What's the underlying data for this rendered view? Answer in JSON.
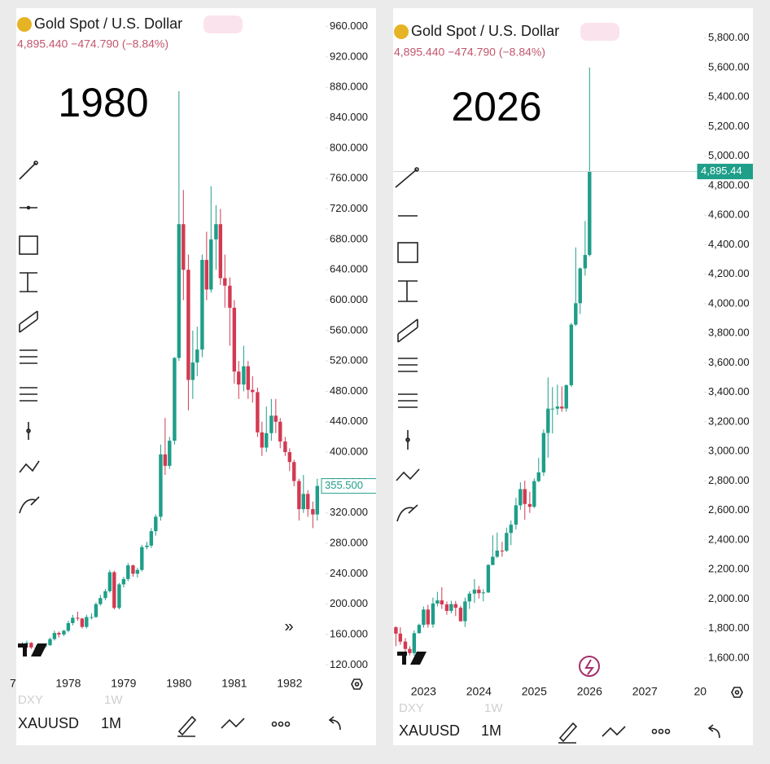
{
  "chart_data": [
    {
      "type": "candlestick",
      "title": "Gold Spot / U.S. Dollar",
      "quote": "4,895.440 −474.790 (−8.84%)",
      "annotation": "1980",
      "up_color": "#1f9e89",
      "down_color": "#d23a52",
      "x": [
        1977.17,
        1977.25,
        1977.33,
        1977.42,
        1977.5,
        1977.58,
        1977.67,
        1977.75,
        1977.83,
        1977.92,
        1978.0,
        1978.08,
        1978.17,
        1978.25,
        1978.33,
        1978.42,
        1978.5,
        1978.58,
        1978.67,
        1978.75,
        1978.83,
        1978.92,
        1979.0,
        1979.08,
        1979.17,
        1979.25,
        1979.33,
        1979.42,
        1979.5,
        1979.58,
        1979.67,
        1979.75,
        1979.83,
        1979.92,
        1980.0,
        1980.08,
        1980.17,
        1980.25,
        1980.33,
        1980.42,
        1980.5,
        1980.58,
        1980.67,
        1980.75,
        1980.83,
        1980.92,
        1981.0,
        1981.08,
        1981.17,
        1981.25,
        1981.33,
        1981.42,
        1981.5,
        1981.58,
        1981.67,
        1981.75,
        1981.83,
        1981.92,
        1982.0,
        1982.08,
        1982.17,
        1982.25,
        1982.33,
        1982.42,
        1982.5
      ],
      "candles": [
        [
          146,
          150,
          144,
          148
        ],
        [
          148,
          152,
          145,
          149
        ],
        [
          149,
          150,
          141,
          143
        ],
        [
          143,
          146,
          138,
          143
        ],
        [
          143,
          148,
          140,
          144
        ],
        [
          144,
          148,
          142,
          146
        ],
        [
          146,
          156,
          145,
          154
        ],
        [
          154,
          165,
          152,
          162
        ],
        [
          162,
          164,
          156,
          160
        ],
        [
          160,
          166,
          158,
          165
        ],
        [
          165,
          178,
          163,
          175
        ],
        [
          175,
          186,
          172,
          182
        ],
        [
          182,
          190,
          178,
          181
        ],
        [
          181,
          182,
          168,
          170
        ],
        [
          170,
          186,
          168,
          183
        ],
        [
          183,
          188,
          180,
          183
        ],
        [
          183,
          202,
          182,
          200
        ],
        [
          200,
          212,
          198,
          208
        ],
        [
          208,
          220,
          205,
          217
        ],
        [
          217,
          245,
          215,
          242
        ],
        [
          242,
          244,
          193,
          195
        ],
        [
          195,
          228,
          193,
          226
        ],
        [
          226,
          236,
          222,
          233
        ],
        [
          233,
          254,
          230,
          251
        ],
        [
          251,
          252,
          236,
          240
        ],
        [
          240,
          248,
          235,
          245
        ],
        [
          245,
          278,
          243,
          275
        ],
        [
          275,
          282,
          272,
          277
        ],
        [
          277,
          300,
          274,
          296
        ],
        [
          296,
          318,
          290,
          315
        ],
        [
          315,
          410,
          310,
          397
        ],
        [
          397,
          445,
          370,
          382
        ],
        [
          382,
          420,
          378,
          415
        ],
        [
          415,
          525,
          410,
          524
        ],
        [
          524,
          875,
          520,
          700
        ],
        [
          700,
          745,
          600,
          640
        ],
        [
          640,
          660,
          455,
          495
        ],
        [
          495,
          560,
          470,
          518
        ],
        [
          518,
          565,
          500,
          535
        ],
        [
          535,
          660,
          525,
          653
        ],
        [
          653,
          690,
          600,
          614
        ],
        [
          614,
          750,
          610,
          680
        ],
        [
          680,
          725,
          640,
          700
        ],
        [
          700,
          720,
          620,
          629
        ],
        [
          629,
          660,
          590,
          619
        ],
        [
          619,
          630,
          540,
          590
        ],
        [
          590,
          600,
          490,
          506
        ],
        [
          506,
          520,
          470,
          489
        ],
        [
          489,
          540,
          480,
          513
        ],
        [
          513,
          520,
          470,
          482
        ],
        [
          482,
          500,
          465,
          479
        ],
        [
          479,
          485,
          420,
          426
        ],
        [
          426,
          440,
          395,
          406
        ],
        [
          406,
          460,
          400,
          425
        ],
        [
          425,
          470,
          415,
          448
        ],
        [
          448,
          470,
          425,
          440
        ],
        [
          440,
          445,
          405,
          414
        ],
        [
          414,
          420,
          395,
          400
        ],
        [
          400,
          405,
          375,
          387
        ],
        [
          387,
          390,
          355,
          362
        ],
        [
          362,
          365,
          310,
          325
        ],
        [
          325,
          370,
          320,
          345
        ],
        [
          345,
          350,
          315,
          325
        ],
        [
          325,
          335,
          300,
          318
        ],
        [
          318,
          365,
          310,
          355.5
        ]
      ],
      "xlim": [
        1977.06,
        1982.65
      ],
      "xticks": [
        {
          "value": 1977,
          "label": "7"
        },
        1978,
        1979,
        1980,
        1981,
        1982
      ],
      "ylim": [
        100,
        980
      ],
      "yticks": [
        {
          "value": 120,
          "label": "120.000"
        },
        {
          "value": 160,
          "label": "160.000"
        },
        {
          "value": 200,
          "label": "200.000"
        },
        {
          "value": 240,
          "label": "240.000"
        },
        {
          "value": 280,
          "label": "280.000"
        },
        {
          "value": 320,
          "label": "320.000"
        },
        {
          "value": 360,
          "label": "360.000"
        },
        {
          "value": 400,
          "label": "400.000"
        },
        {
          "value": 440,
          "label": "440.000"
        },
        {
          "value": 480,
          "label": "480.000"
        },
        {
          "value": 520,
          "label": "520.000"
        },
        {
          "value": 560,
          "label": "560.000"
        },
        {
          "value": 600,
          "label": "600.000"
        },
        {
          "value": 640,
          "label": "640.000"
        },
        {
          "value": 680,
          "label": "680.000"
        },
        {
          "value": 720,
          "label": "720.000"
        },
        {
          "value": 760,
          "label": "760.000"
        },
        {
          "value": 800,
          "label": "800.000"
        },
        {
          "value": 840,
          "label": "840.000"
        },
        {
          "value": 880,
          "label": "880.000"
        },
        {
          "value": 920,
          "label": "920.000"
        },
        {
          "value": 960,
          "label": "960.000"
        }
      ],
      "last_price": {
        "value": 355.5,
        "label": "355.500"
      }
    },
    {
      "type": "candlestick",
      "title": "Gold Spot / U.S. Dollar",
      "quote": "4,895.440 −474.790 (−8.84%)",
      "annotation": "2026",
      "up_color": "#1f9e89",
      "down_color": "#d23a52",
      "x": [
        2022.5,
        2022.58,
        2022.67,
        2022.75,
        2022.83,
        2022.92,
        2023.0,
        2023.08,
        2023.17,
        2023.25,
        2023.33,
        2023.42,
        2023.5,
        2023.58,
        2023.67,
        2023.75,
        2023.83,
        2023.92,
        2024.0,
        2024.08,
        2024.17,
        2024.25,
        2024.33,
        2024.42,
        2024.5,
        2024.58,
        2024.67,
        2024.75,
        2024.83,
        2024.92,
        2025.0,
        2025.08,
        2025.17,
        2025.25,
        2025.33,
        2025.42,
        2025.5,
        2025.58,
        2025.67,
        2025.75,
        2025.83,
        2025.92,
        2026.0
      ],
      "candles": [
        [
          1808,
          1814,
          1680,
          1765
        ],
        [
          1765,
          1808,
          1690,
          1711
        ],
        [
          1711,
          1735,
          1615,
          1661
        ],
        [
          1661,
          1680,
          1617,
          1633
        ],
        [
          1633,
          1786,
          1616,
          1768
        ],
        [
          1768,
          1833,
          1765,
          1824
        ],
        [
          1824,
          1949,
          1805,
          1928
        ],
        [
          1928,
          1960,
          1805,
          1827
        ],
        [
          1827,
          2009,
          1805,
          1969
        ],
        [
          1969,
          2048,
          1950,
          1990
        ],
        [
          1990,
          2079,
          1932,
          1963
        ],
        [
          1963,
          1983,
          1893,
          1919
        ],
        [
          1919,
          1987,
          1903,
          1965
        ],
        [
          1965,
          1987,
          1884,
          1940
        ],
        [
          1940,
          1953,
          1846,
          1849
        ],
        [
          1849,
          2009,
          1810,
          1983
        ],
        [
          1983,
          2052,
          1932,
          2036
        ],
        [
          2036,
          2135,
          1973,
          2063
        ],
        [
          2063,
          2088,
          2002,
          2039
        ],
        [
          2039,
          2065,
          1984,
          2044
        ],
        [
          2044,
          2236,
          2040,
          2230
        ],
        [
          2230,
          2431,
          2228,
          2286
        ],
        [
          2286,
          2450,
          2277,
          2327
        ],
        [
          2327,
          2387,
          2286,
          2326
        ],
        [
          2326,
          2483,
          2318,
          2447
        ],
        [
          2447,
          2531,
          2364,
          2503
        ],
        [
          2503,
          2685,
          2471,
          2634
        ],
        [
          2634,
          2790,
          2603,
          2744
        ],
        [
          2744,
          2801,
          2536,
          2643
        ],
        [
          2643,
          2726,
          2583,
          2624
        ],
        [
          2624,
          2817,
          2615,
          2798
        ],
        [
          2798,
          2956,
          2790,
          2857
        ],
        [
          2857,
          3148,
          2833,
          3124
        ],
        [
          3124,
          3500,
          2957,
          3289
        ],
        [
          3289,
          3435,
          3121,
          3289
        ],
        [
          3289,
          3452,
          3247,
          3303
        ],
        [
          3303,
          3440,
          3268,
          3290
        ],
        [
          3290,
          3453,
          3268,
          3448
        ],
        [
          3448,
          3870,
          3436,
          3858
        ],
        [
          3858,
          4381,
          3850,
          4003
        ],
        [
          4003,
          4245,
          3930,
          4239
        ],
        [
          4239,
          4560,
          4190,
          4330
        ],
        [
          4330,
          5600,
          4320,
          4895.44
        ]
      ],
      "xlim": [
        2022.45,
        2028.07
      ],
      "xticks": [
        2023,
        2024,
        2025,
        2026,
        2027,
        {
          "value": 2028,
          "label": "20"
        }
      ],
      "ylim": [
        1450,
        5980
      ],
      "yticks": [
        {
          "value": 1600,
          "label": "1,600.00"
        },
        {
          "value": 1800,
          "label": "1,800.00"
        },
        {
          "value": 2000,
          "label": "2,000.00"
        },
        {
          "value": 2200,
          "label": "2,200.00"
        },
        {
          "value": 2400,
          "label": "2,400.00"
        },
        {
          "value": 2600,
          "label": "2,600.00"
        },
        {
          "value": 2800,
          "label": "2,800.00"
        },
        {
          "value": 3000,
          "label": "3,000.00"
        },
        {
          "value": 3200,
          "label": "3,200.00"
        },
        {
          "value": 3400,
          "label": "3,400.00"
        },
        {
          "value": 3600,
          "label": "3,600.00"
        },
        {
          "value": 3800,
          "label": "3,800.00"
        },
        {
          "value": 4000,
          "label": "4,000.00"
        },
        {
          "value": 4200,
          "label": "4,200.00"
        },
        {
          "value": 4400,
          "label": "4,400.00"
        },
        {
          "value": 4600,
          "label": "4,600.00"
        },
        {
          "value": 4800,
          "label": "4,800.00"
        },
        {
          "value": 5000,
          "label": "5,000.00"
        },
        {
          "value": 5200,
          "label": "5,200.00"
        },
        {
          "value": 5400,
          "label": "5,400.00"
        },
        {
          "value": 5600,
          "label": "5,600.00"
        },
        {
          "value": 5800,
          "label": "5,800.00"
        }
      ],
      "last_price": {
        "value": 4895.44,
        "label": "4,895.44"
      }
    }
  ],
  "toolbar": [
    {
      "prev_symbol": "DXY",
      "prev_interval": "1W",
      "symbol": "XAUUSD",
      "interval": "1M"
    },
    {
      "prev_symbol": "DXY",
      "prev_interval": "1W",
      "symbol": "XAUUSD",
      "interval": "1M"
    }
  ]
}
